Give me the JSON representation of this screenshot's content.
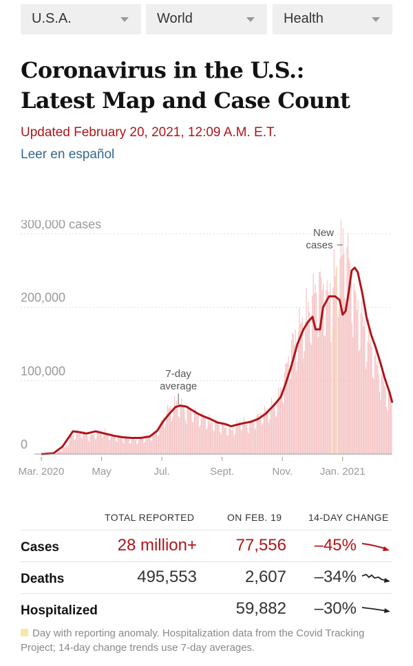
{
  "nav": {
    "dropdowns": [
      {
        "label": "U.S.A."
      },
      {
        "label": "World"
      },
      {
        "label": "Health"
      }
    ]
  },
  "header": {
    "title_line1": "Coronavirus in the U.S.:",
    "title_line2": "Latest Map and Case Count",
    "updated": "Updated February 20, 2021, 12:09 A.M. E.T.",
    "spanish_link": "Leer en español"
  },
  "colors": {
    "accent_red": "#b0141a",
    "bar_fill": "#f3b7b9",
    "anomaly": "#f7e7a6",
    "link_blue": "#326891"
  },
  "chart_data": {
    "type": "bar",
    "title": "",
    "ylabel": "",
    "ylim": [
      0,
      300000
    ],
    "y_ticks": [
      {
        "value": 0,
        "label": "0"
      },
      {
        "value": 100000,
        "label": "100,000"
      },
      {
        "value": 200000,
        "label": "200,000"
      },
      {
        "value": 300000,
        "label": "300,000 cases"
      }
    ],
    "x_ticks": [
      {
        "month": 0,
        "label": "Mar. 2020"
      },
      {
        "month": 2,
        "label": "May"
      },
      {
        "month": 4,
        "label": "Jul."
      },
      {
        "month": 6,
        "label": "Sept."
      },
      {
        "month": 8,
        "label": "Nov."
      },
      {
        "month": 10,
        "label": "Jan. 2021"
      }
    ],
    "x_range_months": [
      0,
      11.65
    ],
    "grid": true,
    "series": [
      {
        "name": "New cases",
        "kind": "daily_bars",
        "anchors": [
          [
            0,
            0
          ],
          [
            0.5,
            1000
          ],
          [
            0.8,
            10000
          ],
          [
            1.0,
            25000
          ],
          [
            1.3,
            30000
          ],
          [
            1.6,
            24000
          ],
          [
            2.0,
            32000
          ],
          [
            2.3,
            25000
          ],
          [
            2.7,
            22000
          ],
          [
            3.1,
            19000
          ],
          [
            3.5,
            22000
          ],
          [
            3.8,
            30000
          ],
          [
            4.0,
            45000
          ],
          [
            4.2,
            60000
          ],
          [
            4.5,
            70000
          ],
          [
            4.75,
            62000
          ],
          [
            5.0,
            60000
          ],
          [
            5.3,
            50000
          ],
          [
            5.6,
            45000
          ],
          [
            6.0,
            38000
          ],
          [
            6.3,
            32000
          ],
          [
            6.6,
            45000
          ],
          [
            6.9,
            40000
          ],
          [
            7.2,
            52000
          ],
          [
            7.5,
            60000
          ],
          [
            7.8,
            70000
          ],
          [
            8.0,
            95000
          ],
          [
            8.3,
            150000
          ],
          [
            8.6,
            175000
          ],
          [
            8.9,
            200000
          ],
          [
            9.2,
            235000
          ],
          [
            9.5,
            210000
          ],
          [
            9.8,
            250000
          ],
          [
            10.0,
            290000
          ],
          [
            10.2,
            260000
          ],
          [
            10.4,
            210000
          ],
          [
            10.7,
            175000
          ],
          [
            11.0,
            140000
          ],
          [
            11.3,
            100000
          ],
          [
            11.6,
            70000
          ]
        ]
      },
      {
        "name": "7-day average",
        "kind": "line",
        "points": [
          [
            0,
            0
          ],
          [
            0.4,
            1000
          ],
          [
            0.7,
            10000
          ],
          [
            0.9,
            22000
          ],
          [
            1.05,
            31000
          ],
          [
            1.25,
            30000
          ],
          [
            1.5,
            28000
          ],
          [
            1.8,
            31000
          ],
          [
            2.1,
            28000
          ],
          [
            2.4,
            25000
          ],
          [
            2.7,
            23000
          ],
          [
            3.0,
            22000
          ],
          [
            3.3,
            22000
          ],
          [
            3.6,
            24000
          ],
          [
            3.85,
            32000
          ],
          [
            4.05,
            45000
          ],
          [
            4.25,
            55000
          ],
          [
            4.45,
            64000
          ],
          [
            4.6,
            66000
          ],
          [
            4.8,
            65000
          ],
          [
            5.0,
            60000
          ],
          [
            5.2,
            55000
          ],
          [
            5.35,
            52000
          ],
          [
            5.6,
            48000
          ],
          [
            5.85,
            43000
          ],
          [
            6.1,
            41000
          ],
          [
            6.3,
            38000
          ],
          [
            6.5,
            40000
          ],
          [
            6.7,
            42000
          ],
          [
            6.95,
            44000
          ],
          [
            7.2,
            48000
          ],
          [
            7.45,
            55000
          ],
          [
            7.75,
            68000
          ],
          [
            7.95,
            78000
          ],
          [
            8.1,
            95000
          ],
          [
            8.3,
            120000
          ],
          [
            8.5,
            150000
          ],
          [
            8.7,
            170000
          ],
          [
            8.85,
            180000
          ],
          [
            9.0,
            187000
          ],
          [
            9.1,
            170000
          ],
          [
            9.25,
            170000
          ],
          [
            9.35,
            200000
          ],
          [
            9.55,
            215000
          ],
          [
            9.75,
            215000
          ],
          [
            9.9,
            210000
          ],
          [
            10.0,
            190000
          ],
          [
            10.1,
            195000
          ],
          [
            10.2,
            220000
          ],
          [
            10.3,
            250000
          ],
          [
            10.4,
            254000
          ],
          [
            10.5,
            248000
          ],
          [
            10.65,
            220000
          ],
          [
            10.8,
            185000
          ],
          [
            10.95,
            162000
          ],
          [
            11.1,
            145000
          ],
          [
            11.25,
            125000
          ],
          [
            11.4,
            103000
          ],
          [
            11.55,
            85000
          ],
          [
            11.65,
            70000
          ]
        ]
      }
    ],
    "annotations": [
      {
        "text_lines": [
          "New",
          "cases"
        ],
        "target": "New cases bars"
      },
      {
        "text_lines": [
          "7-day",
          "average"
        ],
        "target": "7-day average line"
      }
    ]
  },
  "table": {
    "headers": {
      "total": "TOTAL REPORTED",
      "day": "ON FEB. 19",
      "change": "14-DAY CHANGE"
    },
    "rows": [
      {
        "label": "Cases",
        "total": "28 million+",
        "day": "77,556",
        "change": "–45%",
        "trend_icon": "trend-down-red",
        "highlight": true
      },
      {
        "label": "Deaths",
        "total": "495,553",
        "day": "2,607",
        "change": "–34%",
        "trend_icon": "trend-wavy-black",
        "highlight": false
      },
      {
        "label": "Hospitalized",
        "total": "",
        "day": "59,882",
        "change": "–30%",
        "trend_icon": "trend-flat-black",
        "highlight": false
      }
    ]
  },
  "footnote": "Day with reporting anomaly. Hospitalization data from the Covid Tracking Project; 14-day change trends use 7-day averages."
}
